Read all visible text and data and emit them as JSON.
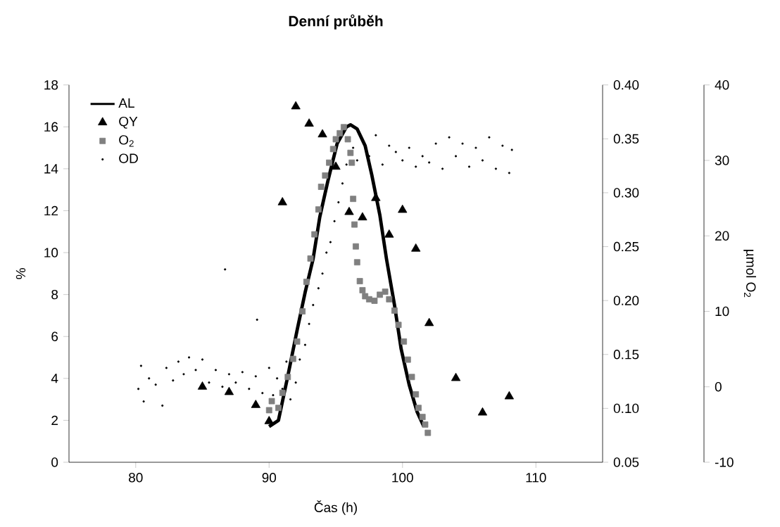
{
  "chart_data": {
    "type": "scatter",
    "title": "Denní průběh",
    "xlabel": "Čas (h)",
    "ylabel": "%",
    "y3label": "µmol O$_{2}$",
    "xlim": [
      75,
      115
    ],
    "xticks": [
      80,
      90,
      100,
      110
    ],
    "ylim": [
      0,
      18
    ],
    "yticks": [
      0,
      2,
      4,
      6,
      8,
      10,
      12,
      14,
      16,
      18
    ],
    "y2lim": [
      0.05,
      0.4
    ],
    "y2ticks": [
      0.05,
      {
        "value": 0.1,
        "label": "0.10"
      },
      0.15,
      {
        "value": 0.2,
        "label": "0.20"
      },
      0.25,
      {
        "value": 0.3,
        "label": "0.30"
      },
      0.35,
      {
        "value": 0.4,
        "label": "0.40"
      }
    ],
    "y3lim": [
      -10,
      40
    ],
    "y3ticks": [
      -10,
      0,
      10,
      20,
      30,
      40
    ],
    "legend": "top left",
    "series": [
      {
        "name": "AL",
        "type": "line",
        "marker": "none",
        "color": "#000000",
        "x": [
          90,
          90.7,
          91.4,
          92.1,
          92.7,
          93.3,
          93.8,
          94.4,
          95.1,
          95.8,
          96.1,
          96.6,
          97.2,
          97.7,
          98.3,
          98.8,
          99.4,
          99.9,
          100.5,
          101.1,
          101.6
        ],
        "values": [
          1.7,
          2.0,
          4.1,
          6.3,
          8.1,
          9.7,
          11.7,
          13.4,
          15.2,
          16.0,
          16.1,
          15.9,
          15.1,
          13.7,
          11.8,
          9.7,
          7.5,
          5.4,
          3.7,
          2.4,
          1.7
        ]
      },
      {
        "name": "QY",
        "marker": "triangle",
        "axis": "y2",
        "color": "#000000",
        "x": [
          85,
          87,
          89,
          90,
          91,
          92,
          93,
          94,
          95,
          96,
          97,
          98,
          99,
          100,
          101,
          102,
          104,
          106,
          108
        ],
        "values": [
          0.12,
          0.115,
          0.103,
          0.088,
          0.291,
          0.38,
          0.364,
          0.354,
          0.324,
          0.282,
          0.277,
          0.295,
          0.261,
          0.284,
          0.248,
          0.179,
          0.128,
          0.096,
          0.111
        ]
      },
      {
        "name": "O$_{2}$",
        "marker": "square",
        "axis": "y3",
        "color": "#808080",
        "x": [
          90.0,
          90.2,
          90.7,
          91.0,
          91.4,
          91.8,
          92.1,
          92.5,
          92.8,
          93.1,
          93.4,
          93.7,
          93.9,
          94.2,
          94.5,
          94.8,
          95.0,
          95.3,
          95.6,
          95.9,
          96.1,
          96.2,
          96.3,
          96.4,
          96.5,
          96.6,
          96.8,
          97.0,
          97.2,
          97.5,
          97.9,
          98.3,
          98.7,
          99.0,
          99.4,
          99.7,
          100.1,
          100.4,
          100.7,
          101.0,
          101.2,
          101.5,
          101.7,
          101.9
        ],
        "values": [
          -3.1,
          -1.9,
          -2.8,
          -0.8,
          1.3,
          3.7,
          6.0,
          10.0,
          13.9,
          17.0,
          20.2,
          23.5,
          26.5,
          28.0,
          29.7,
          31.5,
          32.8,
          33.6,
          34.4,
          32.8,
          31.0,
          29.7,
          24.9,
          21.5,
          18.6,
          16.5,
          14.0,
          12.8,
          12.0,
          11.6,
          11.4,
          12.2,
          12.6,
          11.6,
          10.1,
          8.2,
          6.0,
          3.6,
          1.3,
          -1.0,
          -2.8,
          -4.0,
          -5.0,
          -6.1
        ]
      },
      {
        "name": "OD",
        "marker": "circle",
        "color": "#000000",
        "x": [
          80.2,
          80.4,
          80.6,
          81.0,
          81.5,
          82.0,
          82.3,
          82.8,
          83.2,
          83.6,
          84.0,
          84.5,
          85.0,
          85.5,
          86.0,
          86.5,
          86.7,
          87.0,
          87.5,
          88.0,
          88.5,
          89.0,
          89.1,
          89.5,
          90.0,
          90.3,
          90.6,
          91.0,
          91.3,
          91.6,
          92.0,
          92.3,
          92.7,
          93.0,
          93.3,
          93.7,
          94.0,
          94.3,
          94.6,
          94.9,
          95.2,
          95.5,
          95.8,
          96.3,
          96.6,
          97.5,
          98.0,
          98.5,
          99.0,
          99.5,
          100.0,
          100.5,
          101.0,
          101.5,
          102.0,
          102.5,
          103.0,
          103.5,
          104.0,
          104.5,
          105.0,
          105.5,
          106.0,
          106.5,
          107.0,
          107.5,
          108.0,
          108.2
        ],
        "values": [
          3.5,
          4.6,
          2.9,
          4.0,
          3.7,
          2.7,
          4.5,
          3.9,
          4.8,
          4.2,
          5.0,
          4.4,
          4.9,
          3.8,
          4.4,
          3.6,
          9.2,
          4.2,
          3.8,
          4.3,
          3.5,
          4.1,
          6.8,
          3.3,
          4.5,
          3.2,
          4.0,
          3.5,
          4.8,
          3.0,
          3.8,
          4.9,
          5.6,
          6.6,
          7.5,
          8.3,
          9.0,
          10.0,
          10.5,
          11.5,
          12.4,
          13.3,
          14.2,
          15.0,
          14.4,
          14.6,
          15.6,
          14.2,
          15.1,
          14.8,
          14.4,
          15.0,
          14.1,
          14.6,
          14.3,
          15.2,
          14.0,
          15.5,
          14.6,
          15.2,
          14.1,
          15.0,
          14.4,
          15.5,
          14.0,
          15.1,
          13.8,
          14.9
        ]
      }
    ]
  }
}
